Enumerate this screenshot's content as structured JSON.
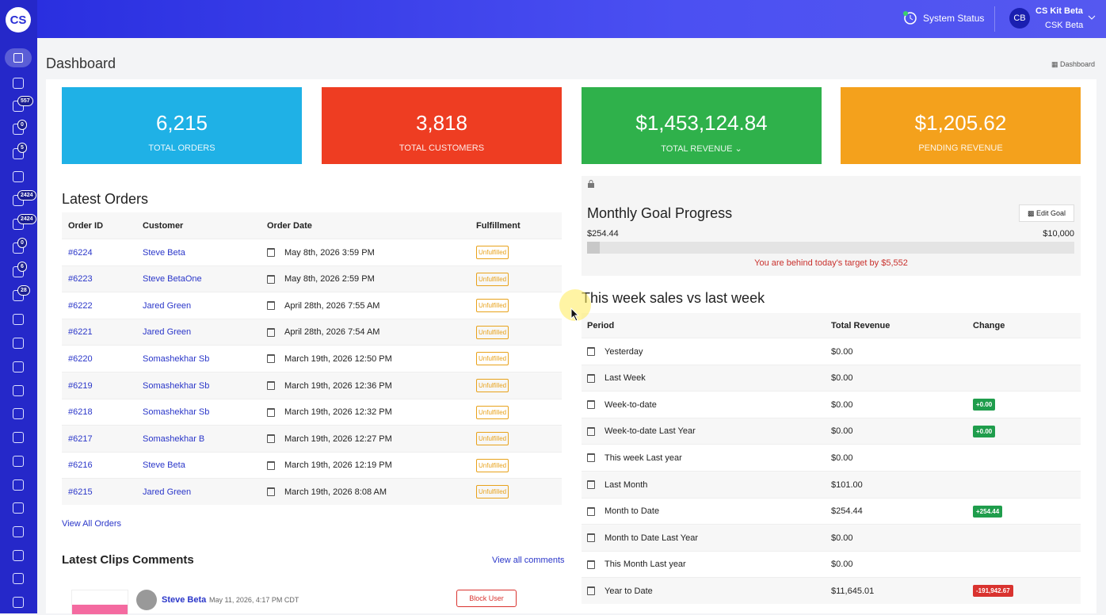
{
  "logo": "CS",
  "topbar": {
    "system_status": "System Status",
    "avatar": "CB",
    "user_name": "CS Kit Beta",
    "user_role": "CSK Beta"
  },
  "sidebar": {
    "badges": [
      "557",
      "0",
      "5",
      "2424",
      "2424",
      "0",
      "6",
      "28"
    ]
  },
  "page": {
    "title": "Dashboard",
    "breadcrumb": "Dashboard"
  },
  "stats": [
    {
      "value": "6,215",
      "label": "TOTAL ORDERS",
      "color": "#1fb1e6"
    },
    {
      "value": "3,818",
      "label": "TOTAL CUSTOMERS",
      "color": "#ee3d22"
    },
    {
      "value": "$1,453,124.84",
      "label": "TOTAL REVENUE",
      "color": "#2fb14b"
    },
    {
      "value": "$1,205.62",
      "label": "PENDING REVENUE",
      "color": "#f4a11c"
    }
  ],
  "orders": {
    "title": "Latest Orders",
    "columns": [
      "Order ID",
      "Customer",
      "Order Date",
      "Fulfillment"
    ],
    "rows": [
      [
        "#6224",
        "Steve Beta",
        "May 8th, 2026 3:59 PM",
        "Unfulfilled"
      ],
      [
        "#6223",
        "Steve BetaOne",
        "May 8th, 2026 2:59 PM",
        "Unfulfilled"
      ],
      [
        "#6222",
        "Jared Green",
        "April 28th, 2026 7:55 AM",
        "Unfulfilled"
      ],
      [
        "#6221",
        "Jared Green",
        "April 28th, 2026 7:54 AM",
        "Unfulfilled"
      ],
      [
        "#6220",
        "Somashekhar Sb",
        "March 19th, 2026 12:50 PM",
        "Unfulfilled"
      ],
      [
        "#6219",
        "Somashekhar Sb",
        "March 19th, 2026 12:36 PM",
        "Unfulfilled"
      ],
      [
        "#6218",
        "Somashekhar Sb",
        "March 19th, 2026 12:32 PM",
        "Unfulfilled"
      ],
      [
        "#6217",
        "Somashekhar B",
        "March 19th, 2026 12:27 PM",
        "Unfulfilled"
      ],
      [
        "#6216",
        "Steve Beta",
        "March 19th, 2026 12:19 PM",
        "Unfulfilled"
      ],
      [
        "#6215",
        "Jared Green",
        "March 19th, 2026 8:08 AM",
        "Unfulfilled"
      ]
    ],
    "view_all": "View All Orders"
  },
  "comments": {
    "title": "Latest Clips Comments",
    "view_all": "View all comments",
    "items": [
      {
        "user": "Steve Beta",
        "date": "May 11, 2026, 4:17 PM CDT",
        "action": "Block User"
      }
    ]
  },
  "goal": {
    "title": "Monthly Goal Progress",
    "edit": "Edit Goal",
    "current": {
      "value": 254.44,
      "label": "$254.44"
    },
    "target": {
      "value": 10000,
      "label": "$10,000"
    },
    "message": "You are behind today's target by $5,552"
  },
  "week": {
    "title": "This week sales vs last week",
    "columns": [
      "Period",
      "Total Revenue",
      "Change"
    ],
    "rows": [
      {
        "period": "Yesterday",
        "revenue": "$0.00"
      },
      {
        "period": "Last Week",
        "revenue": "$0.00"
      },
      {
        "period": "Week-to-date",
        "revenue": "$0.00",
        "change": "+0.00",
        "change_color": "#1f9d4c"
      },
      {
        "period": "Week-to-date Last Year",
        "revenue": "$0.00",
        "change": "+0.00",
        "change_color": "#1f9d4c"
      },
      {
        "period": "This week Last year",
        "revenue": "$0.00"
      },
      {
        "period": "Last Month",
        "revenue": "$101.00"
      },
      {
        "period": "Month to Date",
        "revenue": "$254.44",
        "change": "+254.44",
        "change_color": "#1f9d4c"
      },
      {
        "period": "Month to Date Last Year",
        "revenue": "$0.00"
      },
      {
        "period": "This Month Last year",
        "revenue": "$0.00"
      },
      {
        "period": "Year to Date",
        "revenue": "$11,645.01",
        "change": "-191,942.67",
        "change_color": "#d9332f"
      }
    ]
  }
}
